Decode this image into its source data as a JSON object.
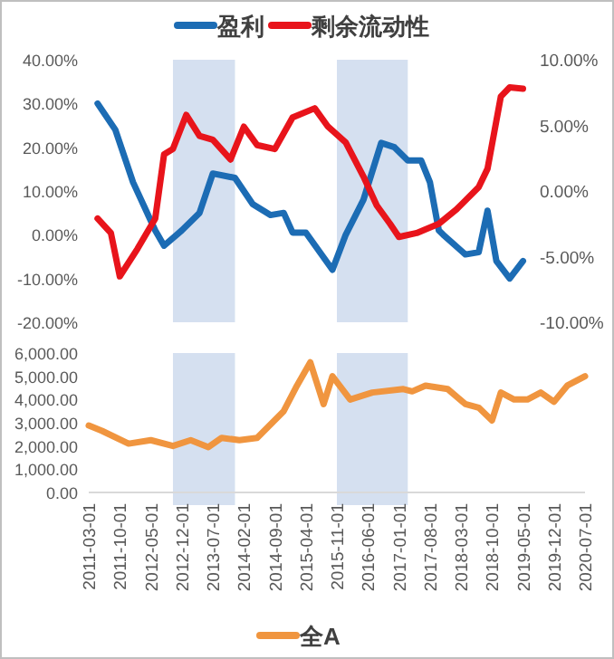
{
  "chart_data": [
    {
      "type": "line",
      "legend": "top",
      "tick_labels": "y",
      "xlim": [
        "2011-03",
        "2020-07"
      ],
      "ylim": [
        -20,
        40
      ],
      "yticks": [
        {
          "value": -20,
          "label": "-20.00%"
        },
        {
          "value": -10,
          "label": "-10.00%"
        },
        {
          "value": 0,
          "label": "0.00%"
        },
        {
          "value": 10,
          "label": "10.00%"
        },
        {
          "value": 20,
          "label": "20.00%"
        },
        {
          "value": 30,
          "label": "30.00%"
        },
        {
          "value": 40,
          "label": "40.00%"
        }
      ],
      "y2lim": [
        -10,
        10
      ],
      "y2ticks": [
        {
          "value": -10,
          "label": "-10.00%"
        },
        {
          "value": -5,
          "label": "-5.00%"
        },
        {
          "value": 0,
          "label": "0.00%"
        },
        {
          "value": 5,
          "label": "5.00%"
        },
        {
          "value": 10,
          "label": "10.00%"
        }
      ],
      "bands": [
        {
          "axis": "x",
          "from": "2012-10",
          "to": "2013-12",
          "color": "#d5e0f0"
        },
        {
          "axis": "x",
          "from": "2015-11",
          "to": "2017-03",
          "color": "#d5e0f0"
        }
      ],
      "series": [
        {
          "name": "盈利",
          "color": "#1c6cb4",
          "x": [
            "2011-05",
            "2011-09",
            "2012-01",
            "2012-06",
            "2012-08",
            "2012-12",
            "2013-04",
            "2013-07",
            "2013-12",
            "2014-04",
            "2014-08",
            "2014-11",
            "2015-01",
            "2015-04",
            "2015-10",
            "2016-01",
            "2016-05",
            "2016-09",
            "2016-12",
            "2017-03",
            "2017-06",
            "2017-08",
            "2017-10",
            "2017-11",
            "2018-04",
            "2018-07",
            "2018-09",
            "2018-11",
            "2019-02",
            "2019-05"
          ],
          "values": [
            30,
            24,
            12,
            1,
            -2.5,
            1,
            5,
            14,
            13,
            7,
            4.5,
            5,
            0.5,
            0.5,
            -8,
            0,
            8,
            21,
            20,
            17,
            17,
            12,
            1,
            0,
            -4.5,
            -4,
            5.5,
            -6,
            -10,
            -6
          ]
        },
        {
          "name": "剩余流动性",
          "color": "#e8141b",
          "axis": "y2",
          "x": [
            "2011-05",
            "2011-08",
            "2011-10",
            "2012-02",
            "2012-06",
            "2012-08",
            "2012-10",
            "2013-01",
            "2013-04",
            "2013-07",
            "2013-11",
            "2014-02",
            "2014-05",
            "2014-09",
            "2015-01",
            "2015-06",
            "2015-09",
            "2016-01",
            "2016-05",
            "2016-08",
            "2016-11",
            "2017-01",
            "2017-05",
            "2017-10",
            "2018-02",
            "2018-07",
            "2018-09",
            "2018-12",
            "2019-02",
            "2019-05"
          ],
          "values": [
            -2.1,
            -3.2,
            -6.5,
            -4.4,
            -2.1,
            2.8,
            3.2,
            5.8,
            4.2,
            3.9,
            2.4,
            4.9,
            3.5,
            3.2,
            5.6,
            6.3,
            4.9,
            3.7,
            1.1,
            -1.1,
            -2.5,
            -3.5,
            -3.2,
            -2.5,
            -1.4,
            0.3,
            1.7,
            7.2,
            7.9,
            7.8
          ]
        }
      ]
    },
    {
      "type": "line",
      "legend": "bottom",
      "xlim": [
        "2011-03",
        "2020-07"
      ],
      "xticks": [
        {
          "value": "2011-03",
          "label": "2011-03-01"
        },
        {
          "value": "2011-10",
          "label": "2011-10-01"
        },
        {
          "value": "2012-05",
          "label": "2012-05-01"
        },
        {
          "value": "2012-12",
          "label": "2012-12-01"
        },
        {
          "value": "2013-07",
          "label": "2013-07-01"
        },
        {
          "value": "2014-02",
          "label": "2014-02-01"
        },
        {
          "value": "2014-09",
          "label": "2014-09-01"
        },
        {
          "value": "2015-04",
          "label": "2015-04-01"
        },
        {
          "value": "2015-11",
          "label": "2015-11-01"
        },
        {
          "value": "2016-06",
          "label": "2016-06-01"
        },
        {
          "value": "2017-01",
          "label": "2017-01-01"
        },
        {
          "value": "2017-08",
          "label": "2017-08-01"
        },
        {
          "value": "2018-03",
          "label": "2018-03-01"
        },
        {
          "value": "2018-10",
          "label": "2018-10-01"
        },
        {
          "value": "2019-05",
          "label": "2019-05-01"
        },
        {
          "value": "2019-12",
          "label": "2019-12-01"
        },
        {
          "value": "2020-07",
          "label": "2020-07-01"
        }
      ],
      "ylim": [
        0,
        6000
      ],
      "yticks": [
        {
          "value": 0,
          "label": "0.00"
        },
        {
          "value": 1000,
          "label": "1,000.00"
        },
        {
          "value": 2000,
          "label": "2,000.00"
        },
        {
          "value": 3000,
          "label": "3,000.00"
        },
        {
          "value": 4000,
          "label": "4,000.00"
        },
        {
          "value": 5000,
          "label": "5,000.00"
        },
        {
          "value": 6000,
          "label": "6,000.00"
        }
      ],
      "bands": [
        {
          "axis": "x",
          "from": "2012-10",
          "to": "2013-12",
          "color": "#d5e0f0"
        },
        {
          "axis": "x",
          "from": "2015-11",
          "to": "2017-03",
          "color": "#d5e0f0"
        }
      ],
      "series": [
        {
          "name": "全A",
          "color": "#f0953f",
          "x": [
            "2011-03",
            "2011-06",
            "2011-12",
            "2012-05",
            "2012-10",
            "2013-02",
            "2013-06",
            "2013-09",
            "2014-01",
            "2014-05",
            "2014-11",
            "2015-02",
            "2015-05",
            "2015-08",
            "2015-10",
            "2016-02",
            "2016-07",
            "2017-02",
            "2017-04",
            "2017-07",
            "2017-12",
            "2018-04",
            "2018-07",
            "2018-10",
            "2018-12",
            "2019-03",
            "2019-06",
            "2019-09",
            "2019-12",
            "2020-03",
            "2020-07"
          ],
          "values": [
            2880,
            2650,
            2100,
            2250,
            2000,
            2250,
            1950,
            2350,
            2250,
            2350,
            3500,
            4600,
            5600,
            3800,
            5000,
            4000,
            4300,
            4450,
            4350,
            4600,
            4450,
            3800,
            3650,
            3100,
            4300,
            4000,
            4000,
            4300,
            3900,
            4600,
            5000
          ]
        }
      ]
    }
  ]
}
